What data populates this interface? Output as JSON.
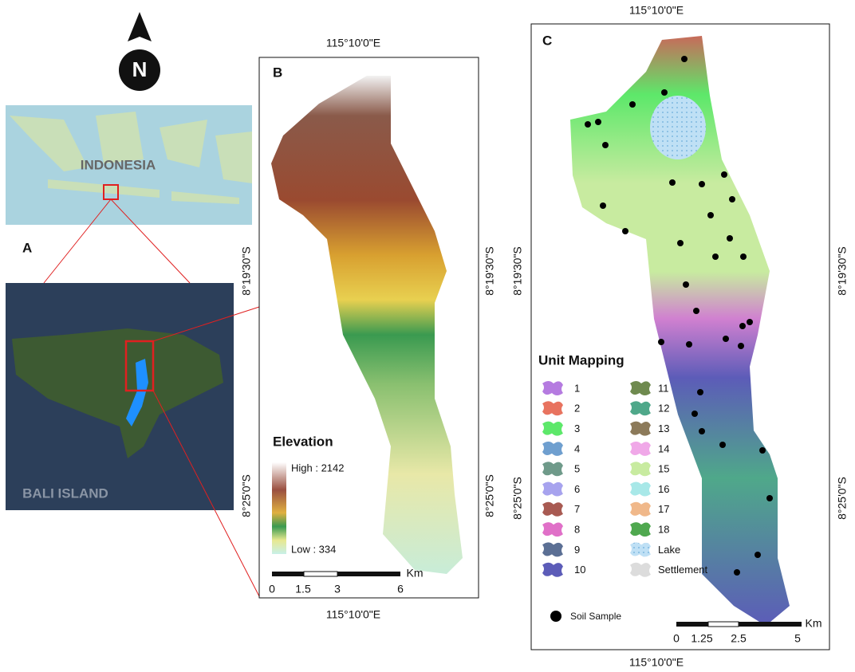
{
  "panel_a": {
    "label": "A",
    "north": "N",
    "country": "INDONESIA",
    "island": "BALI ISLAND"
  },
  "panel_b": {
    "label": "B",
    "lon_top": "115°10'0\"E",
    "lon_bottom": "115°10'0\"E",
    "lat_left_1": "8°19'30\"S",
    "lat_left_2": "8°25'0\"S",
    "lat_right_1": "8°19'30\"S",
    "lat_right_2": "8°25'0\"S",
    "legend": {
      "title": "Elevation",
      "high": "High : 2142",
      "low": "Low : 334"
    },
    "scale": {
      "ticks": [
        "0",
        "1.5",
        "3",
        "6"
      ],
      "unit": "Km"
    }
  },
  "panel_c": {
    "label": "C",
    "lon_top": "115°10'0\"E",
    "lon_bottom": "115°10'0\"E",
    "lat_left_1": "8°19'30\"S",
    "lat_left_2": "8°25'0\"S",
    "lat_right_1": "8°19'30\"S",
    "lat_right_2": "8°25'0\"S",
    "legend": {
      "title": "Unit Mapping",
      "items": [
        {
          "label": "1",
          "color": "#b57be0"
        },
        {
          "label": "2",
          "color": "#e8735f"
        },
        {
          "label": "3",
          "color": "#5de86a"
        },
        {
          "label": "4",
          "color": "#6f9fcf"
        },
        {
          "label": "5",
          "color": "#6f9a8a"
        },
        {
          "label": "6",
          "color": "#a7a3ee"
        },
        {
          "label": "7",
          "color": "#a85a52"
        },
        {
          "label": "8",
          "color": "#e070c8"
        },
        {
          "label": "9",
          "color": "#5b6f94"
        },
        {
          "label": "10",
          "color": "#5c5cb8"
        },
        {
          "label": "11",
          "color": "#6f8a4f"
        },
        {
          "label": "12",
          "color": "#4fa88a"
        },
        {
          "label": "13",
          "color": "#8c7a5a"
        },
        {
          "label": "14",
          "color": "#f0a8e8"
        },
        {
          "label": "15",
          "color": "#c8eba0"
        },
        {
          "label": "16",
          "color": "#a8e8e8"
        },
        {
          "label": "17",
          "color": "#f0b88a"
        },
        {
          "label": "18",
          "color": "#4fa84f"
        },
        {
          "label": "Lake",
          "color": "#bfe0f5"
        },
        {
          "label": "Settlement",
          "color": "#dcdcdc"
        }
      ],
      "sample": "Soil Sample"
    },
    "scale": {
      "ticks": [
        "0",
        "1.25",
        "2.5",
        "5"
      ],
      "unit": "Km"
    }
  }
}
